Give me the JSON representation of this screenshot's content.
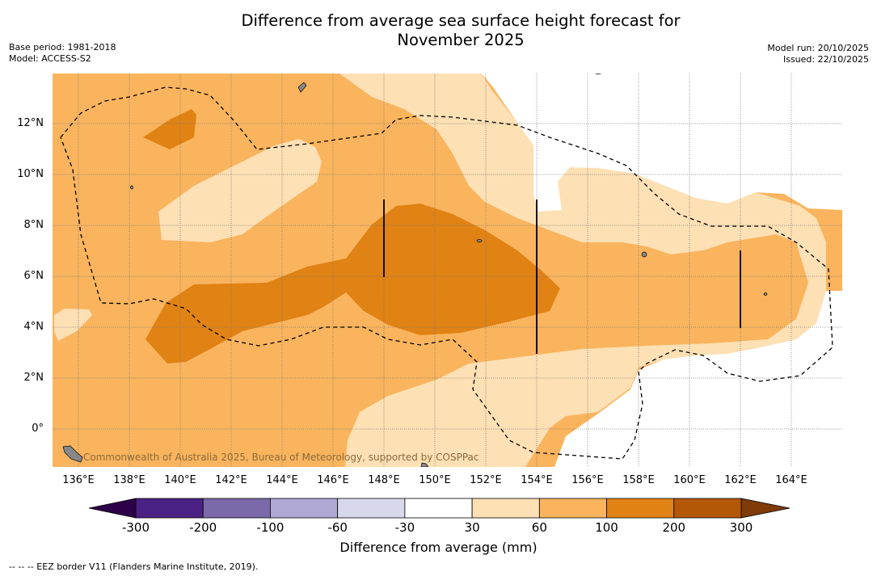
{
  "title_line1": "Difference from average sea surface height forecast for",
  "title_line2": "November 2025",
  "meta_left": {
    "base_period": "Base period: 1981-2018",
    "model": "Model: ACCESS-S2"
  },
  "meta_right": {
    "model_run": "Model run: 20/10/2025",
    "issued": "Issued: 22/10/2025"
  },
  "watermark": "Commonwealth of Australia 2025, Bureau of Meteorology, supported by COSPPac",
  "lat_labels": [
    "12°N",
    "10°N",
    "8°N",
    "6°N",
    "4°N",
    "2°N",
    "0°"
  ],
  "lon_labels": [
    "136°E",
    "138°E",
    "140°E",
    "142°E",
    "144°E",
    "146°E",
    "148°E",
    "150°E",
    "152°E",
    "154°E",
    "156°E",
    "158°E",
    "160°E",
    "162°E",
    "164°E"
  ],
  "colorbar": {
    "ticks": [
      "-300",
      "-200",
      "-100",
      "-60",
      "-30",
      "30",
      "60",
      "100",
      "200",
      "300"
    ],
    "colors": [
      "#4b2183",
      "#7a6aaa",
      "#aea8d2",
      "#d8d8ec",
      "#ffffff",
      "#fde0b4",
      "#fab45e",
      "#e08214",
      "#b35806"
    ],
    "under_color": "#2d0049",
    "over_color": "#7f3b08",
    "title": "Difference from average (mm)"
  },
  "footer": "--  --  -- EEZ border V11 (Flanders Marine Institute, 2019)."
}
